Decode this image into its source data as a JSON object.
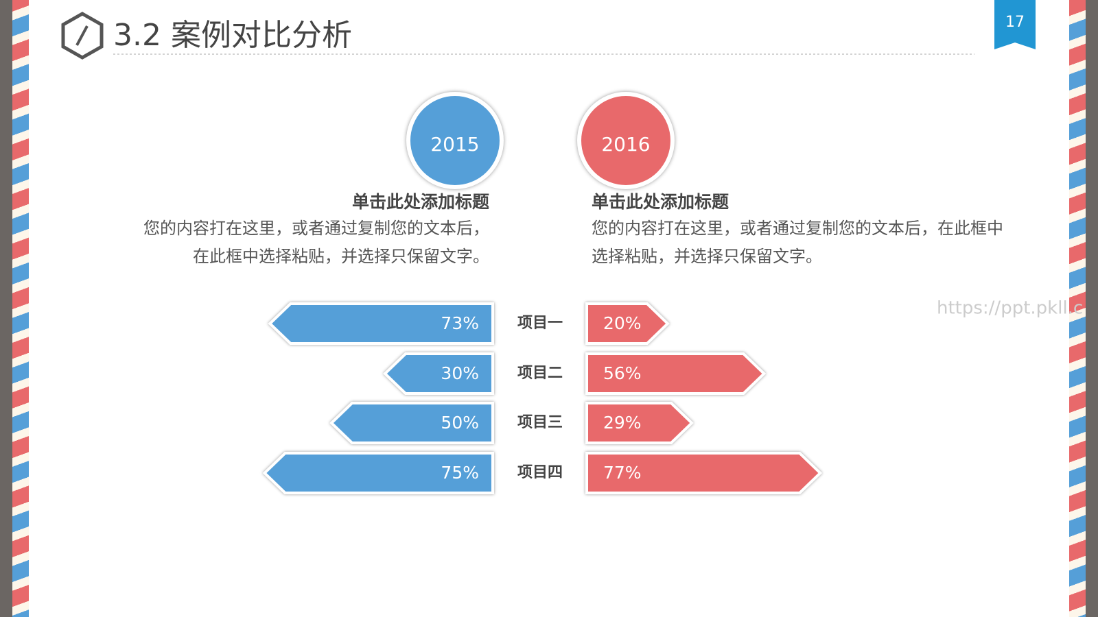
{
  "header": {
    "title": "3.2 案例对比分析",
    "page_number": "17"
  },
  "watermark": "https://ppt.pkll.c",
  "chart_data": {
    "type": "butterfly_bar",
    "categories": [
      "项目一",
      "项目二",
      "项目三",
      "项目四"
    ],
    "xlim": [
      0,
      100
    ],
    "series": [
      {
        "name": "2015",
        "color": "#559fd8",
        "heading": "单击此处添加标题",
        "text": "您的内容打在这里，或者通过复制您的文本后，在此框中选择粘贴，并选择只保留文字。",
        "values": [
          73,
          30,
          50,
          75
        ],
        "value_labels": [
          "73%",
          "30%",
          "50%",
          "75%"
        ]
      },
      {
        "name": "2016",
        "color": "#e8696b",
        "heading": "单击此处添加标题",
        "text": "您的内容打在这里，或者通过复制您的文本后，在此框中选择粘贴，并选择只保留文字。",
        "values": [
          20,
          56,
          29,
          77
        ],
        "value_labels": [
          "20%",
          "56%",
          "29%",
          "77%"
        ]
      }
    ]
  }
}
